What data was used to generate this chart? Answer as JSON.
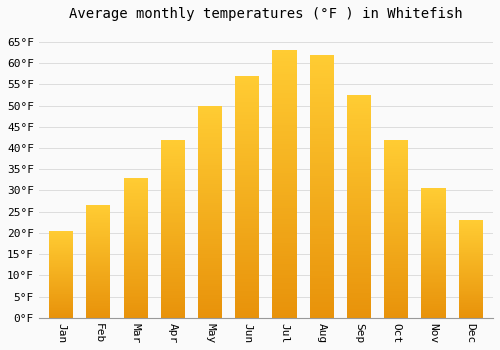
{
  "title": "Average monthly temperatures (°F ) in Whitefish",
  "months": [
    "Jan",
    "Feb",
    "Mar",
    "Apr",
    "May",
    "Jun",
    "Jul",
    "Aug",
    "Sep",
    "Oct",
    "Nov",
    "Dec"
  ],
  "values": [
    20.5,
    26.5,
    33,
    42,
    50,
    57,
    63,
    62,
    52.5,
    42,
    30.5,
    23
  ],
  "bar_color_bottom": "#E8920A",
  "bar_color_top": "#FFCC33",
  "ylim": [
    0,
    68
  ],
  "yticks": [
    0,
    5,
    10,
    15,
    20,
    25,
    30,
    35,
    40,
    45,
    50,
    55,
    60,
    65
  ],
  "ytick_labels": [
    "0°F",
    "5°F",
    "10°F",
    "15°F",
    "20°F",
    "25°F",
    "30°F",
    "35°F",
    "40°F",
    "45°F",
    "50°F",
    "55°F",
    "60°F",
    "65°F"
  ],
  "background_color": "#FAFAFA",
  "grid_color": "#DDDDDD",
  "title_fontsize": 10,
  "tick_fontsize": 8,
  "font_family": "monospace",
  "bar_width": 0.65
}
